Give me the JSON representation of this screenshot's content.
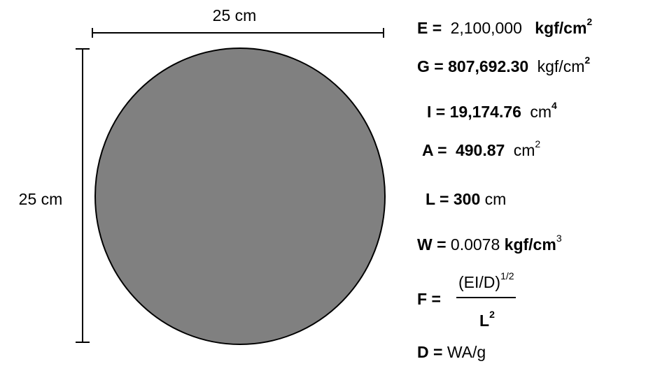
{
  "dimensions": {
    "width": "25 cm",
    "height": "25 cm"
  },
  "properties": [
    {
      "label": "E =",
      "value": "2,100,000",
      "unit": "kgf/cm",
      "exponent": "2"
    },
    {
      "label": "G =",
      "value": "807,692.30",
      "unit": "kgf/cm",
      "exponent": "2"
    },
    {
      "label": "I =",
      "value": "19,174.76",
      "unit": "cm",
      "exponent": "4"
    },
    {
      "label": "A =",
      "value": "490.87",
      "unit": "cm",
      "exponent": "2"
    },
    {
      "label": "L =",
      "value": "300",
      "unit": "cm"
    },
    {
      "label": "W =",
      "value": "0.0078",
      "unit": "kgf/cm",
      "exponent": "3"
    }
  ],
  "formulas": {
    "frequency": {
      "label": "F =",
      "numerator": "(EI/D)",
      "numerator_exponent": "1/2",
      "denominator": "L",
      "denominator_exponent": "2"
    },
    "density": {
      "label": "D =",
      "expression": "WA/g"
    }
  }
}
